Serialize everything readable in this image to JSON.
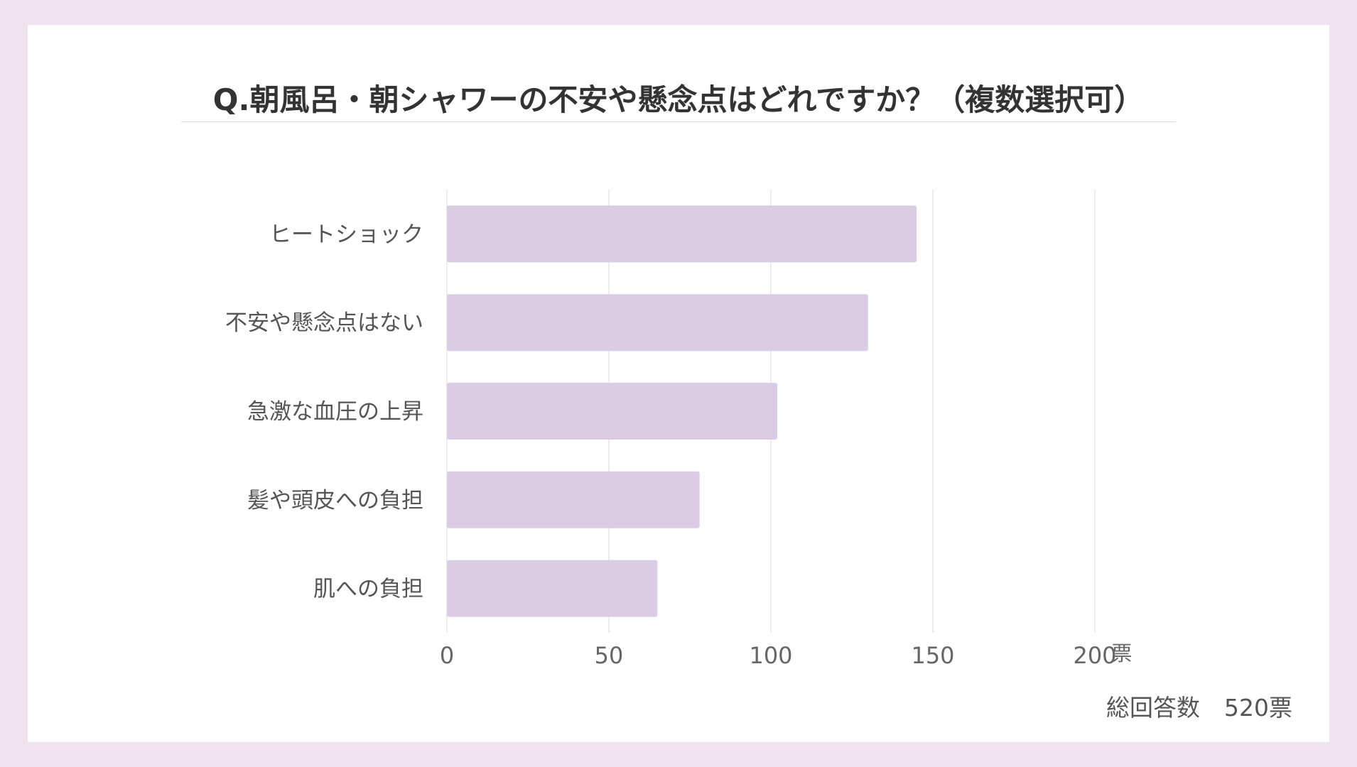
{
  "chart_data": {
    "type": "bar",
    "orientation": "horizontal",
    "title": "Q.朝風呂・朝シャワーの不安や懸念点はどれですか？（複数選択可）",
    "categories": [
      "ヒートショック",
      "不安や懸念点はない",
      "急激な血圧の上昇",
      "髪や頭皮への負担",
      "肌への負担"
    ],
    "values": [
      145,
      130,
      102,
      78,
      65
    ],
    "xlim": [
      0,
      200
    ],
    "xticks": [
      0,
      50,
      100,
      150,
      200
    ],
    "xunit": "票",
    "grid": true,
    "legend": "none",
    "bar_color": "#dbcce5",
    "total_label": "総回答数",
    "total_value": "520票"
  }
}
